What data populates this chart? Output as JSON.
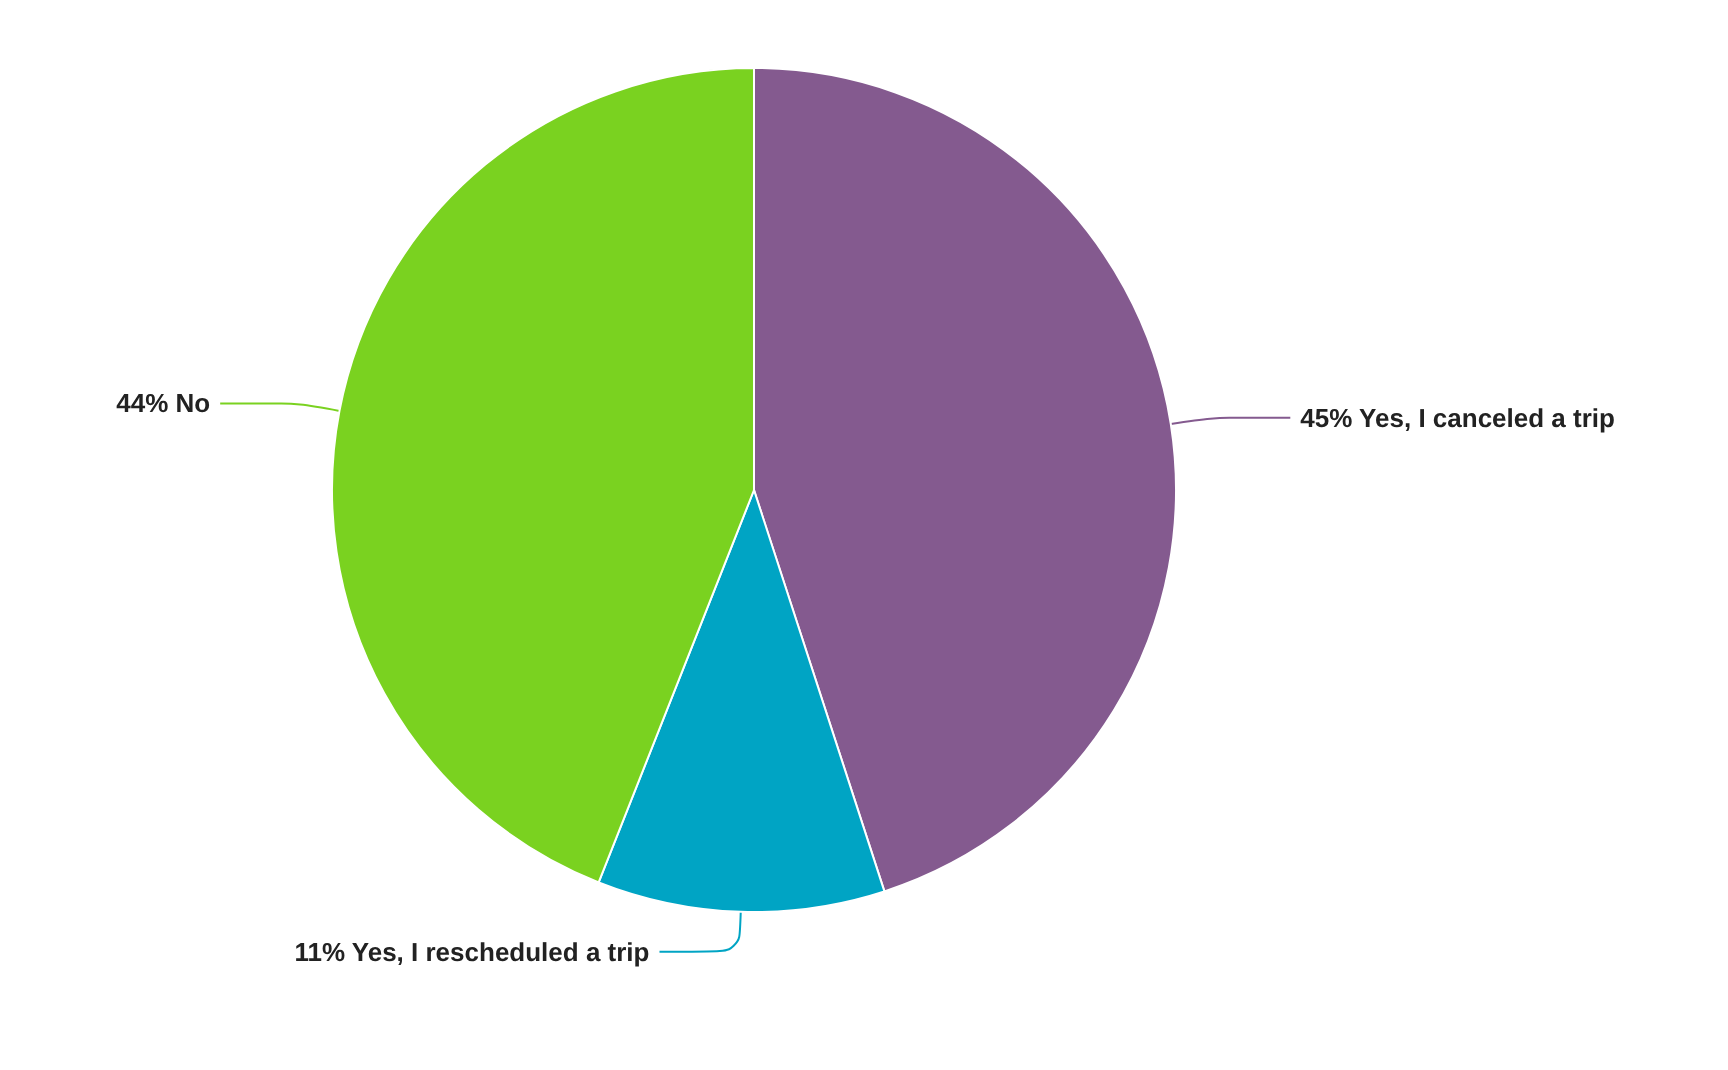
{
  "chart_data": {
    "type": "pie",
    "categories": [
      "Yes, I canceled a trip",
      "Yes, I rescheduled a trip",
      "No"
    ],
    "values": [
      45,
      11,
      44
    ],
    "value_labels": [
      "45%",
      "11%",
      "44%"
    ],
    "colors": [
      "#845a8f",
      "#00a4c4",
      "#7ad220"
    ],
    "legend": false
  }
}
